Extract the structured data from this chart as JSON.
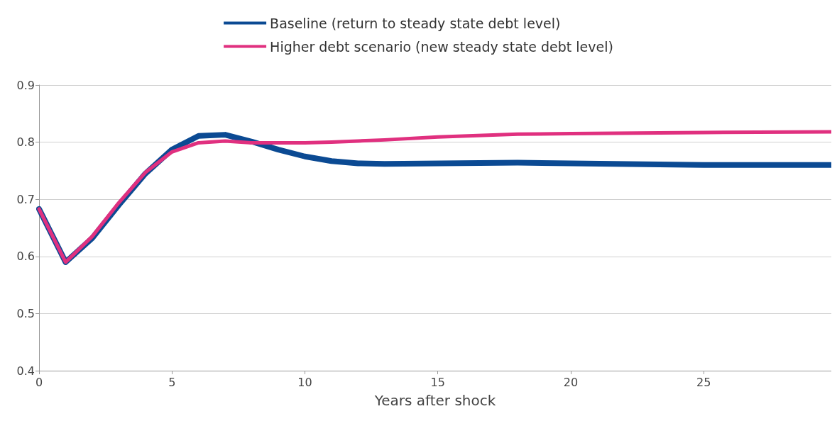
{
  "chart_data": {
    "type": "line",
    "xlabel": "Years after shock",
    "xlim": [
      0,
      29.8
    ],
    "xticks": [
      0,
      5,
      10,
      15,
      20,
      25
    ],
    "ylim": [
      0.4,
      0.9
    ],
    "yticks": [
      0.4,
      0.5,
      0.6,
      0.7,
      0.8,
      0.9
    ],
    "grid": "y",
    "legend": "top",
    "marker": "none",
    "line_style": "solid",
    "series": [
      {
        "name": "Baseline (return to steady state debt level)",
        "color": "#0b4a93",
        "x": [
          0,
          1,
          2,
          3,
          4,
          5,
          6,
          7,
          8,
          9,
          10,
          11,
          12,
          13,
          18,
          25,
          29.8
        ],
        "values": [
          0.683,
          0.59,
          0.632,
          0.69,
          0.745,
          0.787,
          0.811,
          0.813,
          0.801,
          0.787,
          0.775,
          0.767,
          0.763,
          0.762,
          0.764,
          0.76,
          0.76
        ]
      },
      {
        "name": "Higher debt scenario (new steady state debt level)",
        "color": "#e0307f",
        "x": [
          0,
          1,
          2,
          3,
          4,
          5,
          6,
          7,
          8,
          9,
          10,
          11,
          12,
          13,
          15,
          18,
          20,
          25,
          29.8
        ],
        "values": [
          0.683,
          0.59,
          0.635,
          0.694,
          0.747,
          0.783,
          0.799,
          0.802,
          0.799,
          0.799,
          0.799,
          0.8,
          0.802,
          0.804,
          0.809,
          0.814,
          0.815,
          0.817,
          0.818
        ]
      }
    ]
  }
}
